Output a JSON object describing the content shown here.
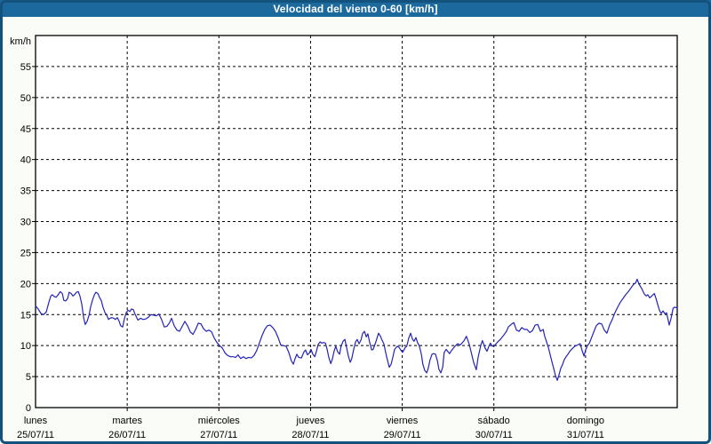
{
  "window": {
    "title": "Velocidad del viento 0-60 [km/h]"
  },
  "colors": {
    "frame_border": "#14527e",
    "titlebar_bg": "#1c699e",
    "titlebar_text": "#ffffff",
    "page_bg": "#fafcf7",
    "plot_bg": "#ffffff",
    "grid": "#000000",
    "axis": "#000000",
    "text": "#000000",
    "line": "#2323b8"
  },
  "chart_data": {
    "type": "line",
    "title": "Velocidad del viento 0-60 [km/h]",
    "ylabel": "km/h",
    "unit_label": "km/h",
    "ylim": [
      0,
      60
    ],
    "y_tick_step": 5,
    "y_tick_labels": [
      "55",
      "50",
      "45",
      "40",
      "35",
      "30",
      "25",
      "20",
      "15",
      "10",
      "5"
    ],
    "y_zero_label": "0",
    "x_range_hours": [
      0,
      168
    ],
    "grid": "dashed",
    "legend_position": "none",
    "x_days": [
      {
        "name": "lunes",
        "date": "25/07/11"
      },
      {
        "name": "martes",
        "date": "26/07/11"
      },
      {
        "name": "miércoles",
        "date": "27/07/11"
      },
      {
        "name": "jueves",
        "date": "28/07/11"
      },
      {
        "name": "viernes",
        "date": "29/07/11"
      },
      {
        "name": "sábado",
        "date": "30/07/11"
      },
      {
        "name": "domingo",
        "date": "31/07/11"
      }
    ],
    "series": [
      {
        "name": "velocidad del viento",
        "unit": "km/h",
        "points_hour_value": [
          [
            0,
            16.4
          ],
          [
            0.7,
            15.9
          ],
          [
            1.4,
            15.2
          ],
          [
            2.1,
            15.0
          ],
          [
            2.8,
            15.4
          ],
          [
            3.5,
            17.0
          ],
          [
            4,
            18.0
          ],
          [
            4.4,
            18.2
          ],
          [
            4.9,
            17.9
          ],
          [
            5.4,
            17.8
          ],
          [
            5.8,
            18.1
          ],
          [
            6.5,
            18.7
          ],
          [
            7,
            18.4
          ],
          [
            7.4,
            17.3
          ],
          [
            7.9,
            17.2
          ],
          [
            8.4,
            17.6
          ],
          [
            8.8,
            18.6
          ],
          [
            9.3,
            18.4
          ],
          [
            9.8,
            18.0
          ],
          [
            10.2,
            18.2
          ],
          [
            10.7,
            18.6
          ],
          [
            11.2,
            18.7
          ],
          [
            11.6,
            18.0
          ],
          [
            12.1,
            16.7
          ],
          [
            12.6,
            14.4
          ],
          [
            13,
            13.4
          ],
          [
            13.5,
            13.9
          ],
          [
            14,
            14.9
          ],
          [
            14.4,
            16.2
          ],
          [
            14.9,
            17.3
          ],
          [
            15.4,
            18.2
          ],
          [
            15.8,
            18.6
          ],
          [
            16.3,
            18.4
          ],
          [
            16.8,
            17.7
          ],
          [
            17.2,
            17.3
          ],
          [
            17.7,
            16.1
          ],
          [
            18.2,
            15.3
          ],
          [
            18.6,
            15.0
          ],
          [
            19.1,
            14.2
          ],
          [
            19.5,
            14.4
          ],
          [
            20,
            14.5
          ],
          [
            20.5,
            14.4
          ],
          [
            20.9,
            14.2
          ],
          [
            21.4,
            14.5
          ],
          [
            21.9,
            13.9
          ],
          [
            22.3,
            13.2
          ],
          [
            22.8,
            13.0
          ],
          [
            23.3,
            14.4
          ],
          [
            23.7,
            15.3
          ],
          [
            24.2,
            15.7
          ],
          [
            24.7,
            15.5
          ],
          [
            25.1,
            15.9
          ],
          [
            25.6,
            15.8
          ],
          [
            26.1,
            15.0
          ],
          [
            26.8,
            14.1
          ],
          [
            27.5,
            14.4
          ],
          [
            28.2,
            14.2
          ],
          [
            28.9,
            14.3
          ],
          [
            29.6,
            14.6
          ],
          [
            30.2,
            15.0
          ],
          [
            30.9,
            14.9
          ],
          [
            31.6,
            14.8
          ],
          [
            32.3,
            15.1
          ],
          [
            33,
            14.2
          ],
          [
            33.7,
            13.0
          ],
          [
            34.4,
            13.1
          ],
          [
            35.1,
            13.7
          ],
          [
            35.6,
            14.4
          ],
          [
            36.3,
            13.2
          ],
          [
            37,
            12.5
          ],
          [
            37.7,
            12.3
          ],
          [
            38.4,
            13.1
          ],
          [
            39.1,
            13.9
          ],
          [
            39.8,
            13.2
          ],
          [
            40.5,
            12.2
          ],
          [
            41.2,
            11.8
          ],
          [
            41.9,
            12.6
          ],
          [
            42.6,
            13.6
          ],
          [
            43.3,
            13.5
          ],
          [
            44,
            12.7
          ],
          [
            44.7,
            12.3
          ],
          [
            45.4,
            12.5
          ],
          [
            46.1,
            12.2
          ],
          [
            46.8,
            11.2
          ],
          [
            47.5,
            10.5
          ],
          [
            48.2,
            10.0
          ],
          [
            48.9,
            9.6
          ],
          [
            49.6,
            8.8
          ],
          [
            50.3,
            8.4
          ],
          [
            51,
            8.2
          ],
          [
            51.7,
            8.2
          ],
          [
            52.4,
            8.1
          ],
          [
            53,
            8.5
          ],
          [
            53.7,
            7.9
          ],
          [
            54.4,
            8.2
          ],
          [
            55.1,
            7.9
          ],
          [
            55.8,
            8.1
          ],
          [
            56.5,
            8.0
          ],
          [
            57.2,
            8.4
          ],
          [
            57.9,
            9.2
          ],
          [
            58.6,
            10.4
          ],
          [
            59.3,
            11.6
          ],
          [
            60,
            12.6
          ],
          [
            60.7,
            13.2
          ],
          [
            61.4,
            13.3
          ],
          [
            62.1,
            12.9
          ],
          [
            62.8,
            12.3
          ],
          [
            63.5,
            11.3
          ],
          [
            64.2,
            10.1
          ],
          [
            64.9,
            10.0
          ],
          [
            65.6,
            9.9
          ],
          [
            66.3,
            8.9
          ],
          [
            67,
            7.5
          ],
          [
            67.5,
            7.0
          ],
          [
            67.9,
            7.8
          ],
          [
            68.4,
            8.6
          ],
          [
            68.9,
            8.1
          ],
          [
            69.6,
            8.0
          ],
          [
            70.3,
            9.0
          ],
          [
            70.7,
            9.3
          ],
          [
            71.2,
            8.5
          ],
          [
            71.7,
            8.8
          ],
          [
            72.1,
            9.4
          ],
          [
            72.6,
            8.6
          ],
          [
            73.1,
            8.2
          ],
          [
            73.5,
            9.0
          ],
          [
            74,
            10.2
          ],
          [
            74.5,
            10.6
          ],
          [
            74.9,
            10.4
          ],
          [
            75.4,
            10.5
          ],
          [
            75.9,
            10.4
          ],
          [
            76.3,
            9.5
          ],
          [
            76.8,
            8.0
          ],
          [
            77.3,
            7.1
          ],
          [
            77.7,
            7.8
          ],
          [
            78.2,
            9.2
          ],
          [
            78.6,
            9.9
          ],
          [
            79.1,
            9.0
          ],
          [
            79.6,
            8.6
          ],
          [
            80,
            9.9
          ],
          [
            80.5,
            10.7
          ],
          [
            81,
            11.0
          ],
          [
            81.4,
            9.8
          ],
          [
            81.9,
            8.3
          ],
          [
            82.4,
            7.3
          ],
          [
            82.8,
            7.9
          ],
          [
            83.3,
            9.4
          ],
          [
            83.8,
            10.6
          ],
          [
            84.2,
            11.0
          ],
          [
            84.7,
            10.3
          ],
          [
            85.2,
            10.9
          ],
          [
            85.6,
            11.9
          ],
          [
            86.1,
            12.3
          ],
          [
            86.6,
            11.4
          ],
          [
            87,
            11.9
          ],
          [
            87.5,
            10.5
          ],
          [
            88,
            9.3
          ],
          [
            88.4,
            9.4
          ],
          [
            89.1,
            10.6
          ],
          [
            89.8,
            12.0
          ],
          [
            90.3,
            11.5
          ],
          [
            90.7,
            10.9
          ],
          [
            91.2,
            10.3
          ],
          [
            91.9,
            8.2
          ],
          [
            92.6,
            6.5
          ],
          [
            93.1,
            7.0
          ],
          [
            93.5,
            8.0
          ],
          [
            94,
            9.4
          ],
          [
            94.7,
            9.9
          ],
          [
            95.2,
            9.7
          ],
          [
            95.6,
            9.3
          ],
          [
            96.1,
            8.9
          ],
          [
            96.8,
            9.7
          ],
          [
            97.2,
            9.9
          ],
          [
            97.7,
            11.2
          ],
          [
            98.2,
            12.0
          ],
          [
            98.7,
            11.0
          ],
          [
            99.1,
            10.7
          ],
          [
            99.6,
            11.3
          ],
          [
            100,
            10.5
          ],
          [
            100.5,
            9.9
          ],
          [
            101,
            8.6
          ],
          [
            101.4,
            7.0
          ],
          [
            101.9,
            6.0
          ],
          [
            102.4,
            5.6
          ],
          [
            102.8,
            6.3
          ],
          [
            103.3,
            7.7
          ],
          [
            103.8,
            8.6
          ],
          [
            104.2,
            8.7
          ],
          [
            104.7,
            8.6
          ],
          [
            105.2,
            7.6
          ],
          [
            105.6,
            6.2
          ],
          [
            106.1,
            5.6
          ],
          [
            106.6,
            6.5
          ],
          [
            107,
            8.9
          ],
          [
            107.5,
            9.4
          ],
          [
            108,
            9.0
          ],
          [
            108.4,
            8.7
          ],
          [
            108.9,
            9.2
          ],
          [
            109.4,
            9.6
          ],
          [
            109.8,
            9.9
          ],
          [
            110.5,
            10.3
          ],
          [
            111.2,
            10.1
          ],
          [
            112.2,
            10.8
          ],
          [
            112.8,
            11.5
          ],
          [
            113.5,
            10.3
          ],
          [
            114,
            9.1
          ],
          [
            114.7,
            7.3
          ],
          [
            115.4,
            6.1
          ],
          [
            115.9,
            8.2
          ],
          [
            116.6,
            10.1
          ],
          [
            117,
            10.8
          ],
          [
            117.7,
            9.6
          ],
          [
            118.2,
            9.1
          ],
          [
            118.7,
            9.9
          ],
          [
            119.1,
            10.4
          ],
          [
            119.6,
            9.9
          ],
          [
            120.3,
            10.1
          ],
          [
            121,
            10.6
          ],
          [
            121.7,
            11.0
          ],
          [
            122.6,
            11.7
          ],
          [
            123.3,
            12.3
          ],
          [
            123.8,
            13.0
          ],
          [
            124.5,
            13.4
          ],
          [
            125.2,
            13.7
          ],
          [
            125.9,
            12.5
          ],
          [
            126.6,
            12.3
          ],
          [
            127.3,
            12.9
          ],
          [
            128,
            12.6
          ],
          [
            128.7,
            12.6
          ],
          [
            129.4,
            12.1
          ],
          [
            130.1,
            12.4
          ],
          [
            130.8,
            13.3
          ],
          [
            131.5,
            13.4
          ],
          [
            132.2,
            12.3
          ],
          [
            132.9,
            12.6
          ],
          [
            133.3,
            11.5
          ],
          [
            133.8,
            10.6
          ],
          [
            134.3,
            9.6
          ],
          [
            134.7,
            8.6
          ],
          [
            135.2,
            7.4
          ],
          [
            135.7,
            6.2
          ],
          [
            136.1,
            5.2
          ],
          [
            136.6,
            4.4
          ],
          [
            137.1,
            5.4
          ],
          [
            137.5,
            6.3
          ],
          [
            138,
            7.0
          ],
          [
            138.4,
            7.7
          ],
          [
            138.9,
            8.2
          ],
          [
            139.4,
            8.6
          ],
          [
            139.8,
            9.0
          ],
          [
            140.5,
            9.5
          ],
          [
            141.2,
            9.9
          ],
          [
            141.9,
            10.1
          ],
          [
            142.6,
            10.3
          ],
          [
            143.1,
            9.2
          ],
          [
            143.6,
            8.3
          ],
          [
            144,
            9.3
          ],
          [
            144.5,
            10.0
          ],
          [
            145,
            10.4
          ],
          [
            145.7,
            11.5
          ],
          [
            146.4,
            12.6
          ],
          [
            146.8,
            13.2
          ],
          [
            147.5,
            13.6
          ],
          [
            148.2,
            13.5
          ],
          [
            148.9,
            12.5
          ],
          [
            149.6,
            12.0
          ],
          [
            150.3,
            13.3
          ],
          [
            151,
            14.2
          ],
          [
            151.7,
            15.3
          ],
          [
            152.4,
            16.2
          ],
          [
            153.1,
            17.0
          ],
          [
            153.8,
            17.6
          ],
          [
            154.5,
            18.2
          ],
          [
            155.2,
            18.7
          ],
          [
            155.9,
            19.3
          ],
          [
            156.6,
            19.9
          ],
          [
            157.1,
            20.1
          ],
          [
            157.5,
            20.7
          ],
          [
            158,
            19.9
          ],
          [
            158.7,
            19.2
          ],
          [
            159.4,
            18.3
          ],
          [
            159.9,
            18.0
          ],
          [
            160.3,
            18.2
          ],
          [
            160.8,
            17.7
          ],
          [
            161.5,
            18.1
          ],
          [
            162,
            18.4
          ],
          [
            162.4,
            17.7
          ],
          [
            162.9,
            16.6
          ],
          [
            163.4,
            15.6
          ],
          [
            163.8,
            15.2
          ],
          [
            164.3,
            15.6
          ],
          [
            164.8,
            15.1
          ],
          [
            165.2,
            15.3
          ],
          [
            165.7,
            13.9
          ],
          [
            165.9,
            13.3
          ],
          [
            166.4,
            14.4
          ],
          [
            166.9,
            16.0
          ],
          [
            167.3,
            16.2
          ],
          [
            168,
            16.1
          ]
        ]
      }
    ]
  }
}
